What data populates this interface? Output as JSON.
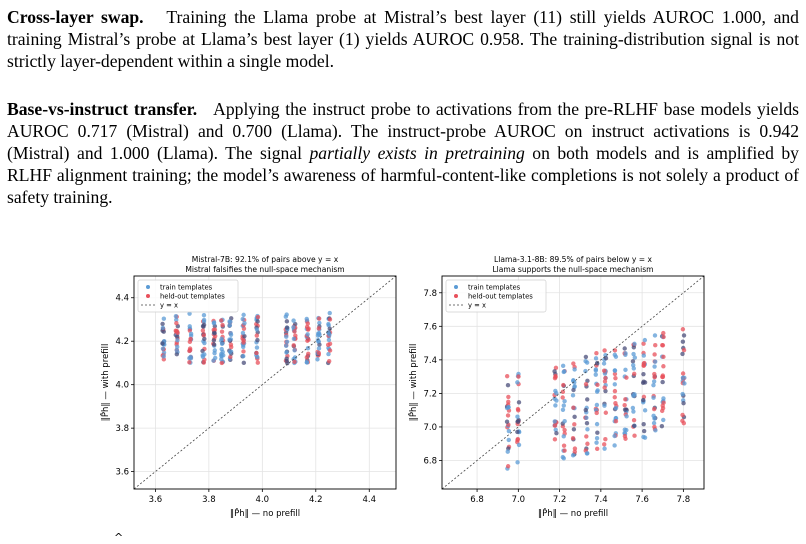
{
  "paragraphs": {
    "p1": {
      "heading": "Cross-layer swap.",
      "text": "Training the Llama probe at Mistral’s best layer (11) still yields AUROC 1.000, and training Mistral’s probe at Llama’s best layer (1) yields AUROC 0.958. The training-distribution signal is not strictly layer-dependent within a single model."
    },
    "p2": {
      "heading": "Base-vs-instruct transfer.",
      "text_a": "Applying the instruct probe to activations from the pre-RLHF base models yields AUROC 0.717 (Mistral) and 0.700 (Llama). The instruct-probe AUROC on instruct activations is 0.942 (Mistral) and 1.000 (Llama). The signal ",
      "text_italic": "partially exists in pretraining",
      "text_b": " on both models and is amplified by RLHF alignment training; the model’s awareness of harmful-content-like completions is not solely a product of safety training."
    }
  },
  "colors": {
    "train": "#5b9bd5",
    "heldout": "#e8505b",
    "dark": "#4a4e7a"
  },
  "chart_data": [
    {
      "type": "scatter",
      "title_line1": "Mistral-7B: 92.1% of pairs above y = x",
      "title_line2": "Mistral falsifies the null-space mechanism",
      "xlabel": "‖P̂h‖ — no prefill",
      "ylabel": "‖P̂h‖ — with prefill",
      "xlim": [
        3.52,
        4.5
      ],
      "ylim": [
        3.52,
        4.5
      ],
      "xticks": [
        "3.6",
        "3.8",
        "4.0",
        "4.2",
        "4.4"
      ],
      "yticks": [
        "3.6",
        "3.8",
        "4.0",
        "4.2",
        "4.4"
      ],
      "grid": true,
      "legend_position": "top-left",
      "legend": [
        "train templates",
        "held-out templates",
        "y = x"
      ],
      "series": [
        {
          "name": "train templates",
          "x_groups": [
            3.63,
            3.68,
            3.73,
            3.78,
            3.82,
            3.85,
            3.88,
            3.93,
            3.98,
            4.09,
            4.12,
            4.17,
            4.21,
            4.25
          ],
          "y_range": [
            4.05,
            4.38
          ]
        },
        {
          "name": "held-out templates",
          "x_groups": [
            3.63,
            3.68,
            3.73,
            3.78,
            3.82,
            3.85,
            3.88,
            3.93,
            3.98,
            4.09,
            4.12,
            4.17,
            4.21,
            4.25
          ],
          "y_range": [
            4.05,
            4.36
          ]
        }
      ]
    },
    {
      "type": "scatter",
      "title_line1": "Llama-3.1-8B: 89.5% of pairs below y = x",
      "title_line2": "Llama supports the null-space mechanism",
      "xlabel": "‖P̂h‖ — no prefill",
      "ylabel": "‖P̂h‖ — with prefill",
      "xlim": [
        6.63,
        7.9
      ],
      "ylim": [
        6.63,
        7.9
      ],
      "xticks": [
        "6.8",
        "7.0",
        "7.2",
        "7.4",
        "7.6",
        "7.8"
      ],
      "yticks": [
        "6.8",
        "7.0",
        "7.2",
        "7.4",
        "7.6",
        "7.8"
      ],
      "grid": true,
      "legend_position": "top-left",
      "legend": [
        "train templates",
        "held-out templates",
        "y = x"
      ],
      "series": [
        {
          "name": "train templates",
          "x_groups": [
            6.95,
            7.0,
            7.18,
            7.22,
            7.27,
            7.33,
            7.38,
            7.42,
            7.47,
            7.52,
            7.56,
            7.61,
            7.66,
            7.7,
            7.8
          ],
          "y_range": [
            6.75,
            7.55
          ]
        },
        {
          "name": "held-out templates",
          "x_groups": [
            6.95,
            7.0,
            7.18,
            7.22,
            7.27,
            7.33,
            7.38,
            7.42,
            7.47,
            7.52,
            7.56,
            7.61,
            7.66,
            7.7,
            7.8
          ],
          "y_range": [
            6.78,
            7.55
          ]
        }
      ]
    }
  ],
  "footer_mark": "^"
}
